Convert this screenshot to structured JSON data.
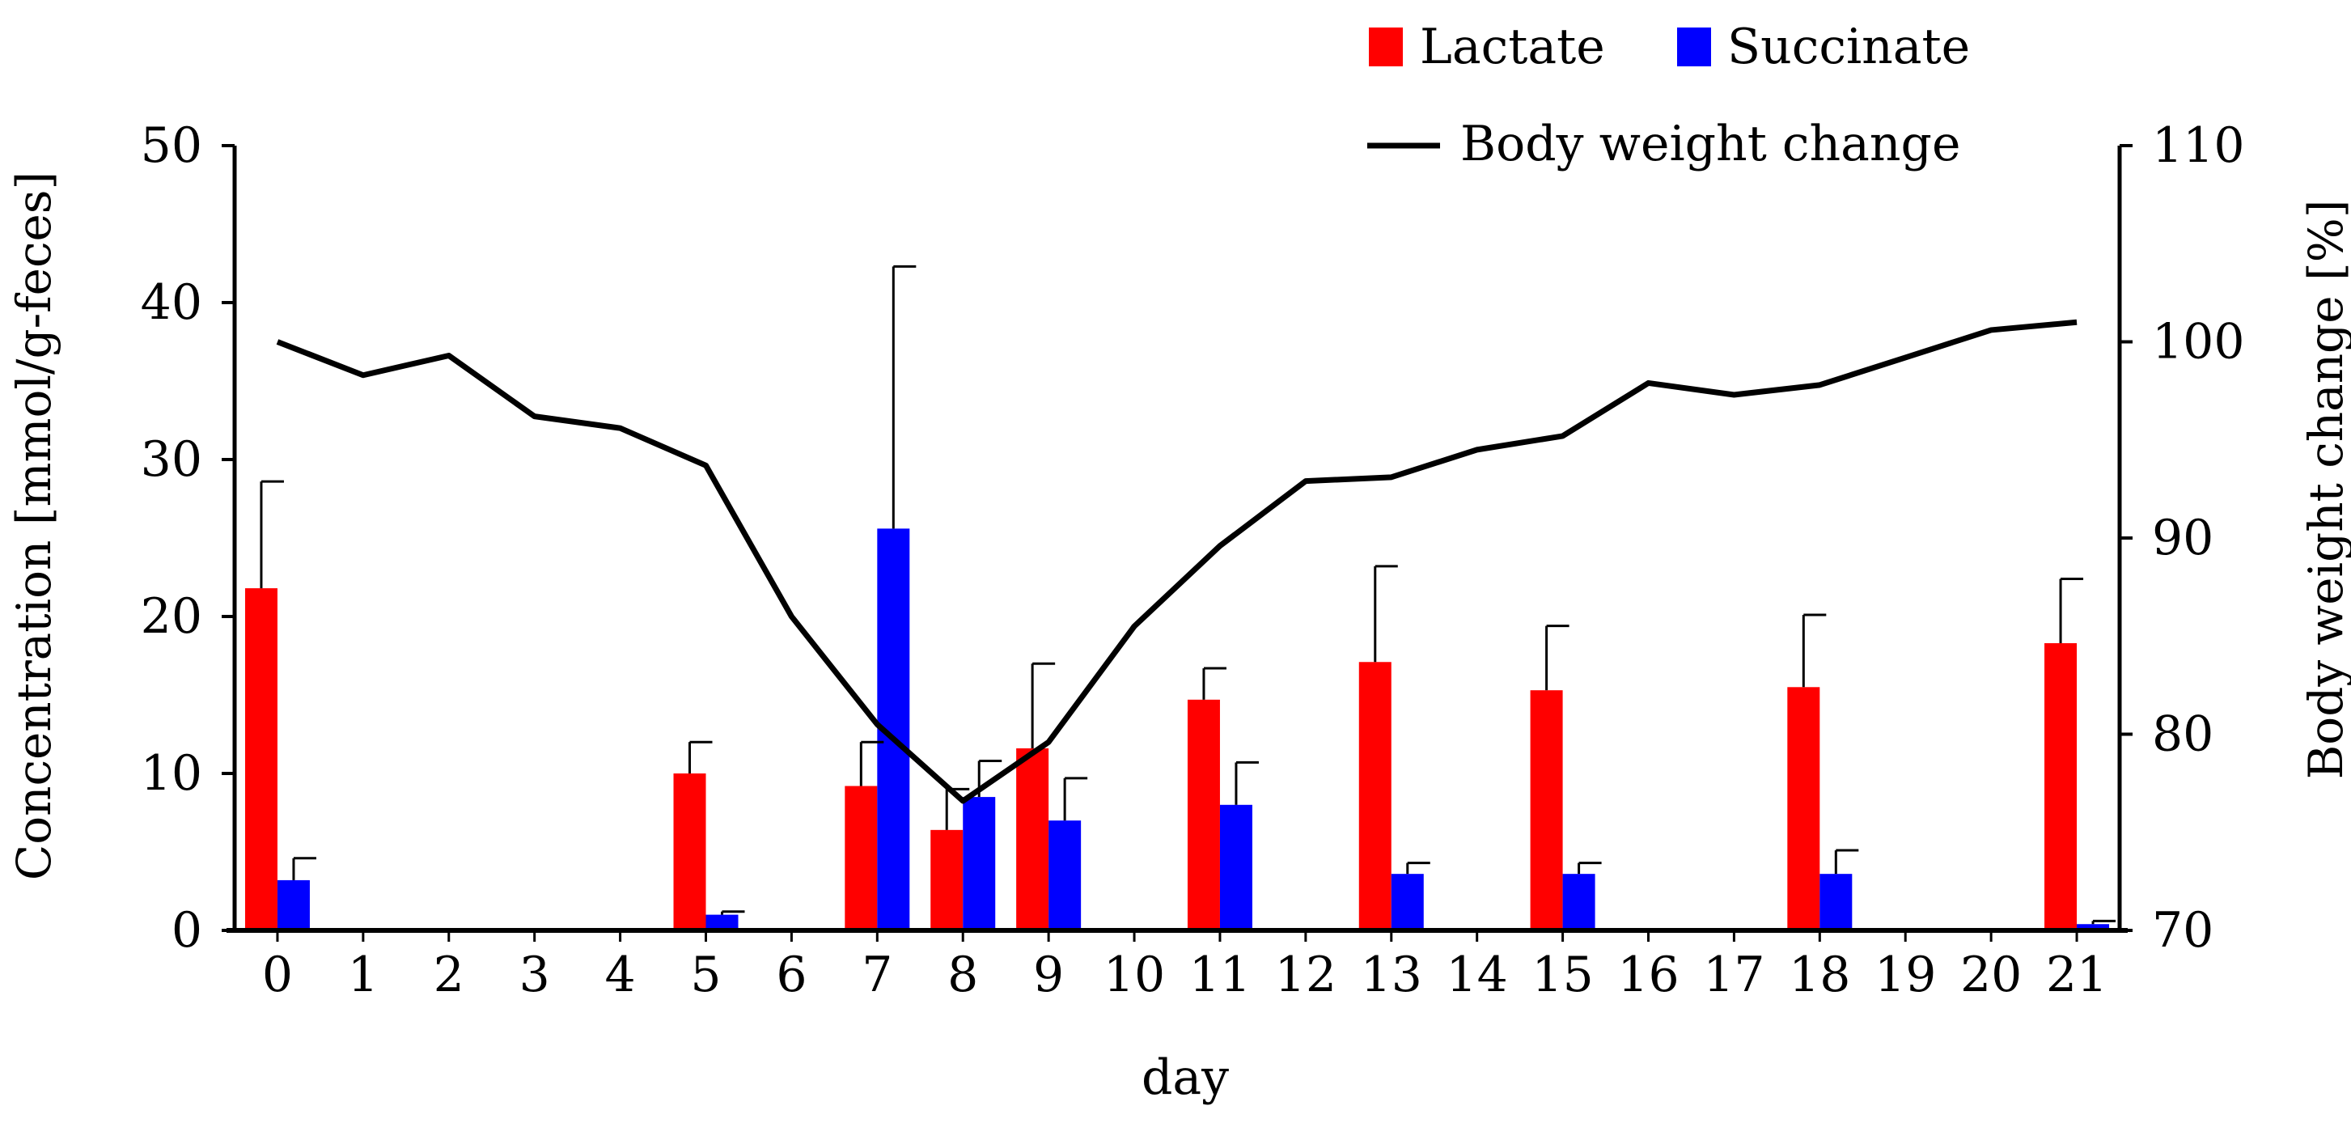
{
  "chart_data": {
    "type": "bar",
    "xlabel": "day",
    "ylabel_left": "Concentration [mmol/g-feces]",
    "ylabel_right": "Body weight change [%]",
    "ylim_left": [
      0,
      50
    ],
    "ylim_right": [
      70,
      110
    ],
    "left_ticks": [
      0,
      10,
      20,
      30,
      40,
      50
    ],
    "right_ticks": [
      70,
      80,
      90,
      100,
      110
    ],
    "categories": [
      "0",
      "1",
      "2",
      "3",
      "4",
      "5",
      "6",
      "7",
      "8",
      "9",
      "10",
      "11",
      "12",
      "13",
      "14",
      "15",
      "16",
      "17",
      "18",
      "19",
      "20",
      "21"
    ],
    "colors": {
      "lactate": "#ff0000",
      "succinate": "#0000ff",
      "line": "#000000"
    },
    "series": [
      {
        "name": "Lactate",
        "kind": "bar",
        "axis": "left",
        "values": [
          21.8,
          null,
          null,
          null,
          null,
          10.0,
          null,
          9.2,
          6.4,
          11.6,
          null,
          14.7,
          null,
          17.1,
          null,
          15.3,
          null,
          null,
          15.5,
          null,
          null,
          18.3
        ],
        "errors": [
          6.8,
          null,
          null,
          null,
          null,
          2.0,
          null,
          2.8,
          2.6,
          5.4,
          null,
          2.0,
          null,
          6.1,
          null,
          4.1,
          null,
          null,
          4.6,
          null,
          null,
          4.1
        ]
      },
      {
        "name": "Succinate",
        "kind": "bar",
        "axis": "left",
        "values": [
          3.2,
          null,
          null,
          null,
          null,
          1.0,
          null,
          25.6,
          8.5,
          7.0,
          null,
          8.0,
          null,
          3.6,
          null,
          3.6,
          null,
          null,
          3.6,
          null,
          null,
          0.4
        ],
        "errors": [
          1.4,
          null,
          null,
          null,
          null,
          0.2,
          null,
          16.7,
          2.3,
          2.7,
          null,
          2.7,
          null,
          0.7,
          null,
          0.7,
          null,
          null,
          1.5,
          null,
          null,
          0.2
        ]
      },
      {
        "name": "Body weight change",
        "kind": "line",
        "axis": "right",
        "values": [
          100.0,
          98.3,
          99.3,
          96.2,
          95.6,
          93.7,
          86.0,
          80.5,
          76.6,
          79.6,
          85.5,
          89.6,
          92.9,
          93.1,
          94.5,
          95.2,
          97.9,
          97.3,
          97.8,
          99.2,
          100.6,
          101.0
        ]
      }
    ]
  }
}
